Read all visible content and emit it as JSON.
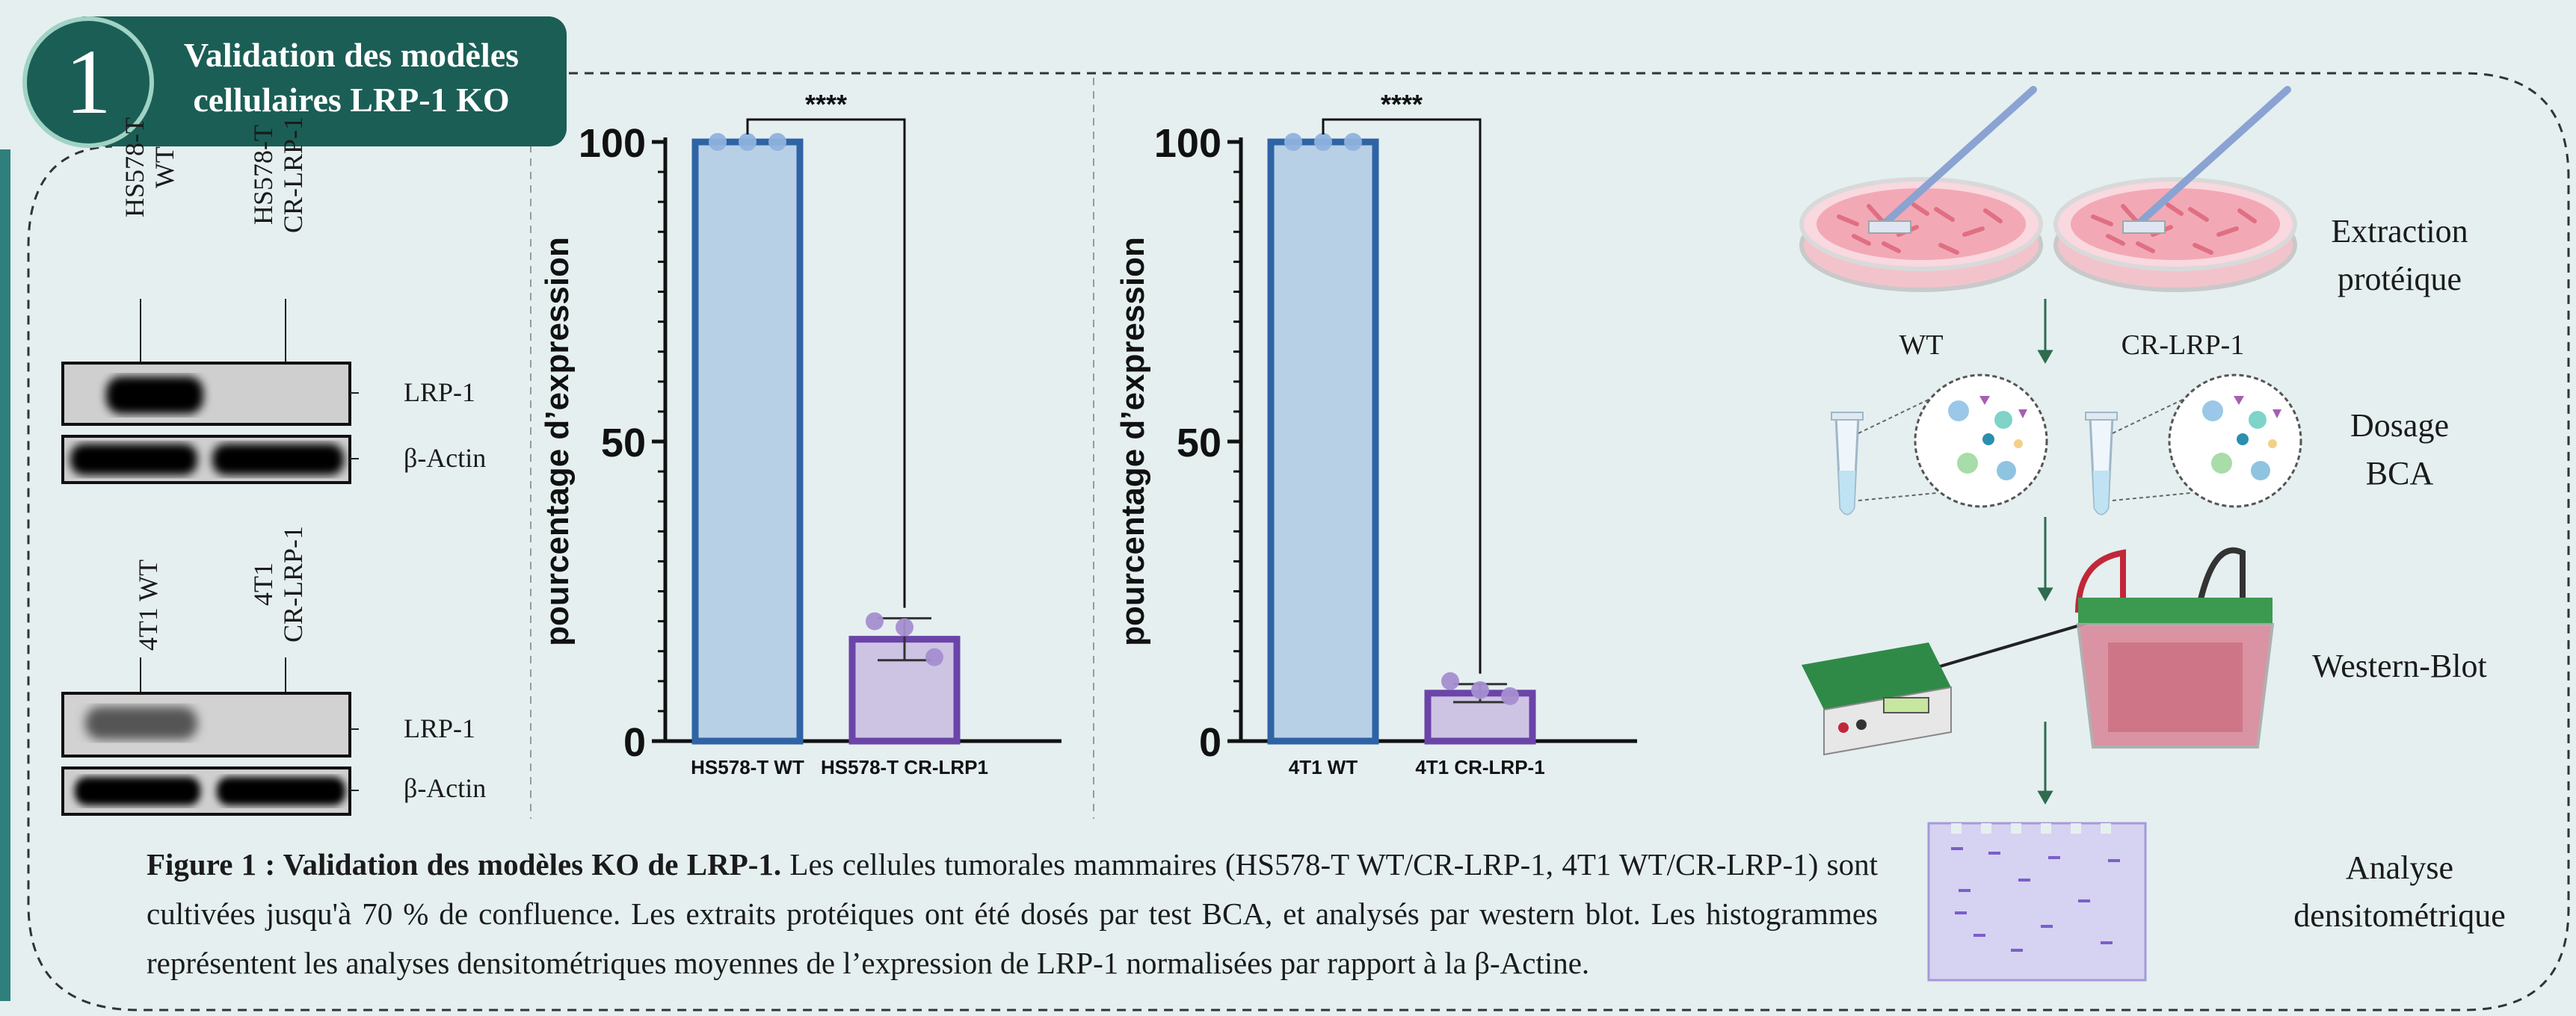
{
  "header": {
    "number": "1",
    "title_line1": "Validation des modèles",
    "title_line2": "cellulaires LRP-1 KO",
    "color": "#1b5e55"
  },
  "western_blots": [
    {
      "lane1_line1": "HS578-T",
      "lane1_line2": "WT",
      "lane2_line1": "HS578-T",
      "lane2_line2": "CR-LRP-1",
      "band1": "LRP-1",
      "band2": "β-Actin"
    },
    {
      "lane1_line1": "4T1 WT",
      "lane1_line2": "",
      "lane2_line1": "4T1",
      "lane2_line2": "CR-LRP-1",
      "band1": "LRP-1",
      "band2": "β-Actin"
    }
  ],
  "chart_data": [
    {
      "type": "bar",
      "categories": [
        "HS578-T WT",
        "HS578-T CR-LRP1"
      ],
      "values": [
        100,
        17
      ],
      "error": [
        0,
        3.5
      ],
      "points": [
        [
          100,
          100,
          100
        ],
        [
          20,
          19,
          14
        ]
      ],
      "ylabel": "pourcentage d’expression",
      "yticks": [
        "0",
        "50",
        "100"
      ],
      "ylim": [
        0,
        100
      ],
      "significance": "****",
      "colors": {
        "bar1_fill": "#b8d0e6",
        "bar1_stroke": "#2e63a6",
        "bar2_fill": "#cdc4e4",
        "bar2_stroke": "#6b44a8",
        "dot1": "#8fb2dd",
        "dot2": "#a58ed0"
      }
    },
    {
      "type": "bar",
      "categories": [
        "4T1 WT",
        "4T1 CR-LRP-1"
      ],
      "values": [
        100,
        8
      ],
      "error": [
        0,
        1.5
      ],
      "points": [
        [
          100,
          100,
          100
        ],
        [
          10,
          8.5,
          7.5
        ]
      ],
      "ylabel": "pourcentage d’expression",
      "yticks": [
        "0",
        "50",
        "100"
      ],
      "ylim": [
        0,
        100
      ],
      "significance": "****",
      "colors": {
        "bar1_fill": "#b8d0e6",
        "bar1_stroke": "#2e63a6",
        "bar2_fill": "#cdc4e4",
        "bar2_stroke": "#6b44a8",
        "dot1": "#8fb2dd",
        "dot2": "#a58ed0"
      }
    }
  ],
  "workflow": {
    "dish_wt": "WT",
    "dish_cr": "CR-LRP-1",
    "step1_line1": "Extraction",
    "step1_line2": "protéique",
    "step2_line1": "Dosage",
    "step2_line2": "BCA",
    "step3": "Western-Blot",
    "step4_line1": "Analyse",
    "step4_line2": "densitométrique"
  },
  "caption": {
    "bold": "Figure 1 : Validation des modèles KO de LRP-1.",
    "text": " Les cellules tumorales mammaires (HS578-T WT/CR-LRP-1, 4T1 WT/CR-LRP-1) sont cultivées jusqu'à 70 % de confluence. Les extraits protéiques ont été dosés par test BCA, et analysés par western blot. Les histogrammes représentent les analyses densitométriques moyennes de l’expression de LRP-1 normalisées par rapport à la β-Actine."
  }
}
